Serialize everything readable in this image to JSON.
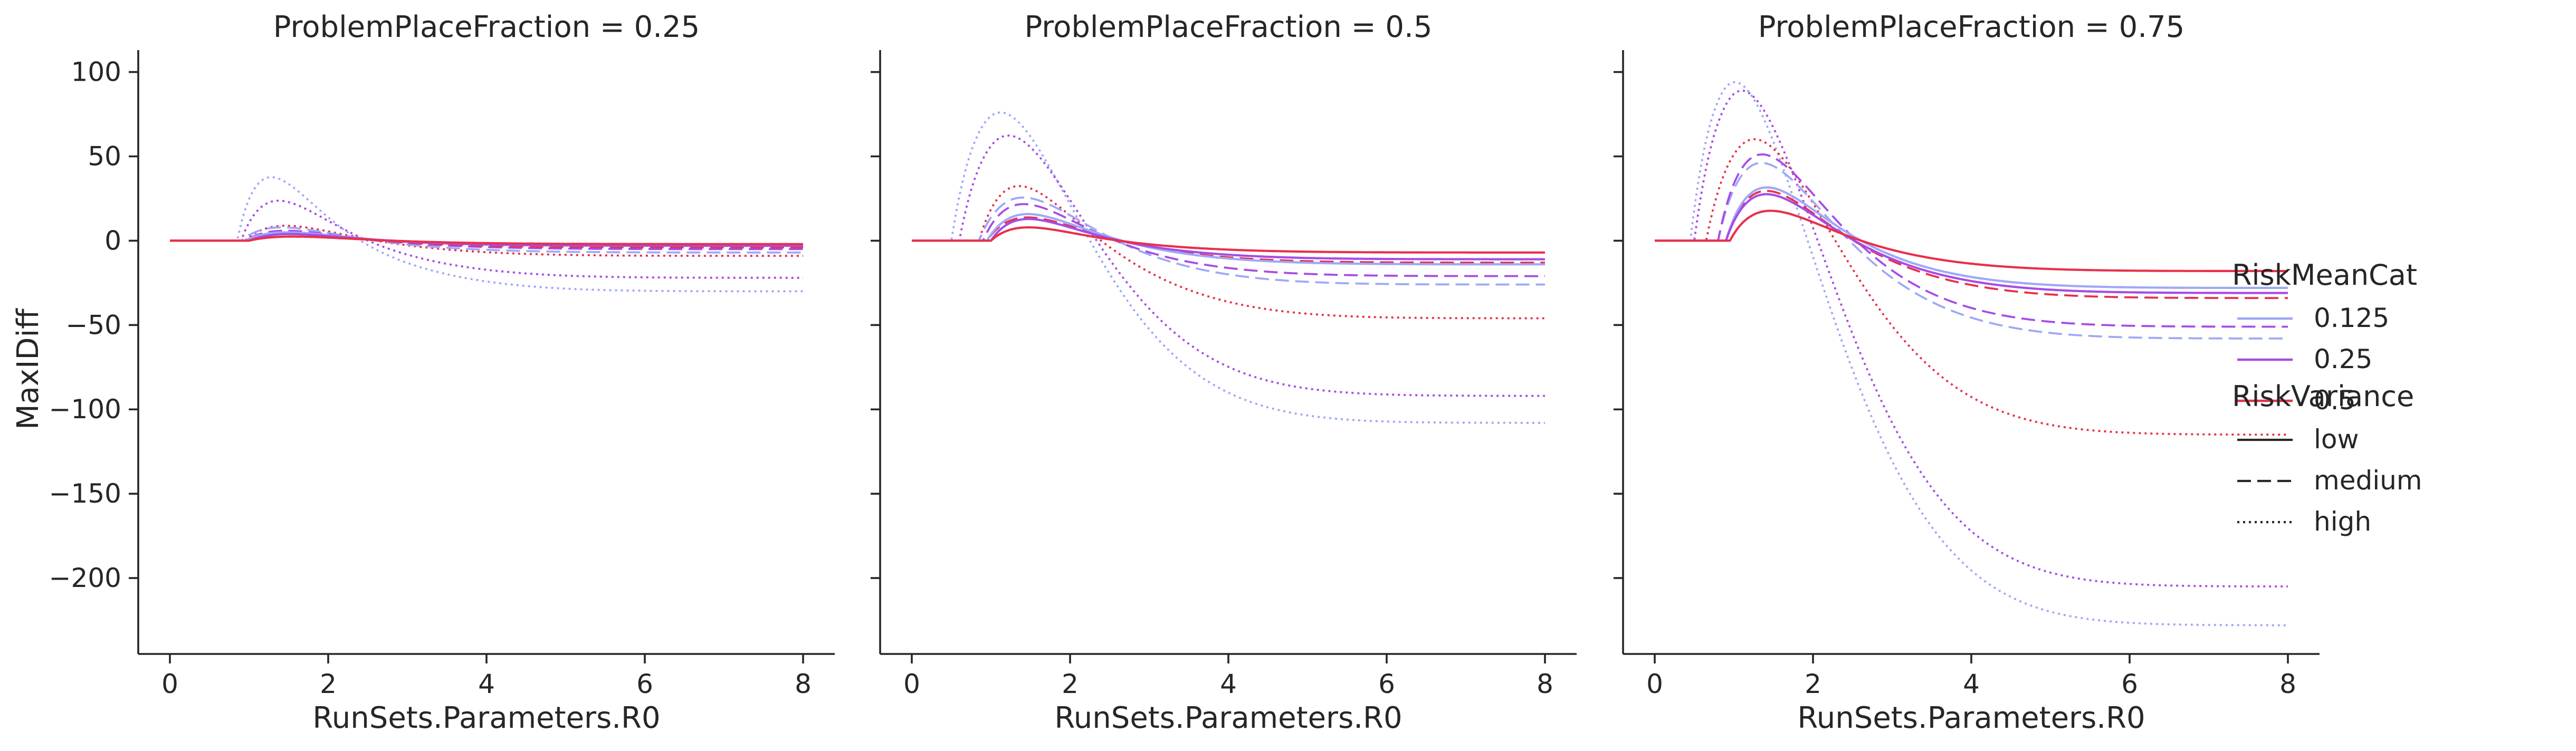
{
  "chart_data": {
    "type": "line",
    "ylabel": "MaxIDiff",
    "ylim": [
      -245,
      113
    ],
    "yticks": [
      100,
      50,
      0,
      -50,
      -100,
      -150,
      -200
    ],
    "ytick_labels": [
      "100",
      "50",
      "0",
      "−50",
      "−100",
      "−150",
      "−200"
    ],
    "xlim": [
      -0.4,
      8.4
    ],
    "xticks": [
      0,
      2,
      4,
      6,
      8
    ],
    "xtick_labels": [
      "0",
      "2",
      "4",
      "6",
      "8"
    ],
    "grid": false,
    "legend": {
      "placement": "right",
      "hue_title": "RiskMeanCat",
      "hue_entries": [
        {
          "label": "0.125",
          "color": "#9fa8f6"
        },
        {
          "label": "0.25",
          "color": "#a64ce6"
        },
        {
          "label": "0.5",
          "color": "#e8304a"
        }
      ],
      "style_title": "RiskVariance",
      "style_entries": [
        {
          "label": "low",
          "dash": "solid"
        },
        {
          "label": "medium",
          "dash": "dashed"
        },
        {
          "label": "high",
          "dash": "dotted"
        }
      ]
    },
    "panels": [
      {
        "title": "ProblemPlaceFraction = 0.25",
        "xlabel": "RunSets.Parameters.R0",
        "series": [
          {
            "hue": "0.125",
            "style": "high",
            "peak_x": 1.3,
            "peak": 38,
            "end": -30,
            "onset": 0.85
          },
          {
            "hue": "0.25",
            "style": "high",
            "peak_x": 1.4,
            "peak": 24,
            "end": -22,
            "onset": 0.9
          },
          {
            "hue": "0.5",
            "style": "high",
            "peak_x": 1.5,
            "peak": 9,
            "end": -9,
            "onset": 0.95
          },
          {
            "hue": "0.125",
            "style": "medium",
            "peak_x": 1.45,
            "peak": 8,
            "end": -7,
            "onset": 0.9
          },
          {
            "hue": "0.25",
            "style": "medium",
            "peak_x": 1.5,
            "peak": 6,
            "end": -5,
            "onset": 0.95
          },
          {
            "hue": "0.5",
            "style": "medium",
            "peak_x": 1.55,
            "peak": 4,
            "end": -4,
            "onset": 1.0
          },
          {
            "hue": "0.125",
            "style": "low",
            "peak_x": 1.5,
            "peak": 5,
            "end": -3,
            "onset": 0.95
          },
          {
            "hue": "0.25",
            "style": "low",
            "peak_x": 1.55,
            "peak": 4,
            "end": -3,
            "onset": 1.0
          },
          {
            "hue": "0.5",
            "style": "low",
            "peak_x": 1.6,
            "peak": 2.5,
            "end": -2,
            "onset": 1.0
          }
        ]
      },
      {
        "title": "ProblemPlaceFraction = 0.5",
        "xlabel": "RunSets.Parameters.R0",
        "series": [
          {
            "hue": "0.125",
            "style": "high",
            "peak_x": 1.2,
            "peak": 78,
            "end": -108,
            "onset": 0.5
          },
          {
            "hue": "0.25",
            "style": "high",
            "peak_x": 1.3,
            "peak": 64,
            "end": -92,
            "onset": 0.6
          },
          {
            "hue": "0.5",
            "style": "high",
            "peak_x": 1.4,
            "peak": 33,
            "end": -46,
            "onset": 0.85
          },
          {
            "hue": "0.125",
            "style": "medium",
            "peak_x": 1.45,
            "peak": 26,
            "end": -26,
            "onset": 0.85
          },
          {
            "hue": "0.25",
            "style": "medium",
            "peak_x": 1.45,
            "peak": 22,
            "end": -21,
            "onset": 0.9
          },
          {
            "hue": "0.5",
            "style": "medium",
            "peak_x": 1.5,
            "peak": 14,
            "end": -13,
            "onset": 0.95
          },
          {
            "hue": "0.125",
            "style": "low",
            "peak_x": 1.5,
            "peak": 16,
            "end": -14,
            "onset": 0.95
          },
          {
            "hue": "0.25",
            "style": "low",
            "peak_x": 1.5,
            "peak": 13,
            "end": -11,
            "onset": 1.0
          },
          {
            "hue": "0.5",
            "style": "low",
            "peak_x": 1.5,
            "peak": 8,
            "end": -7,
            "onset": 1.0
          }
        ]
      },
      {
        "title": "ProblemPlaceFraction = 0.75",
        "xlabel": "RunSets.Parameters.R0",
        "series": [
          {
            "hue": "0.125",
            "style": "high",
            "peak_x": 1.1,
            "peak": 97,
            "end": -228,
            "onset": 0.45
          },
          {
            "hue": "0.25",
            "style": "high",
            "peak_x": 1.2,
            "peak": 92,
            "end": -205,
            "onset": 0.5
          },
          {
            "hue": "0.5",
            "style": "high",
            "peak_x": 1.35,
            "peak": 62,
            "end": -115,
            "onset": 0.65
          },
          {
            "hue": "0.125",
            "style": "medium",
            "peak_x": 1.4,
            "peak": 47,
            "end": -58,
            "onset": 0.8
          },
          {
            "hue": "0.25",
            "style": "medium",
            "peak_x": 1.4,
            "peak": 52,
            "end": -51,
            "onset": 0.8
          },
          {
            "hue": "0.5",
            "style": "medium",
            "peak_x": 1.45,
            "peak": 30,
            "end": -34,
            "onset": 0.9
          },
          {
            "hue": "0.125",
            "style": "low",
            "peak_x": 1.45,
            "peak": 32,
            "end": -28,
            "onset": 0.9
          },
          {
            "hue": "0.25",
            "style": "low",
            "peak_x": 1.45,
            "peak": 28,
            "end": -31,
            "onset": 0.9
          },
          {
            "hue": "0.5",
            "style": "low",
            "peak_x": 1.5,
            "peak": 18,
            "end": -18,
            "onset": 0.95
          }
        ]
      }
    ]
  }
}
